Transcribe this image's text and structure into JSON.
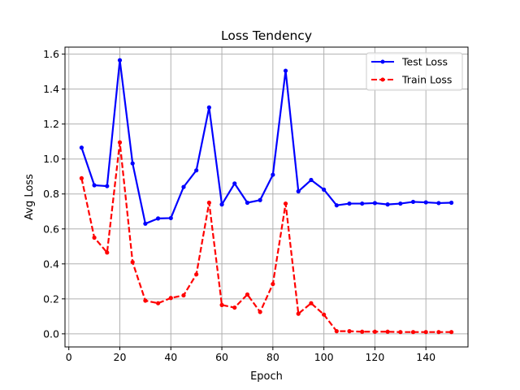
{
  "chart_data": {
    "type": "line",
    "title": "Loss Tendency",
    "xlabel": "Epoch",
    "ylabel": "Avg Loss",
    "xlim": [
      -1.5,
      156.5
    ],
    "ylim": [
      -0.075,
      1.64
    ],
    "xticks": [
      0,
      20,
      40,
      60,
      80,
      100,
      120,
      140
    ],
    "yticks": [
      0.0,
      0.2,
      0.4,
      0.6,
      0.8,
      1.0,
      1.2,
      1.4,
      1.6
    ],
    "ytick_labels": [
      "0.0",
      "0.2",
      "0.4",
      "0.6",
      "0.8",
      "1.0",
      "1.2",
      "1.4",
      "1.6"
    ],
    "grid": true,
    "legend_position": "upper-right",
    "x": [
      5,
      10,
      15,
      20,
      25,
      30,
      35,
      40,
      45,
      50,
      55,
      60,
      65,
      70,
      75,
      80,
      85,
      90,
      95,
      100,
      105,
      110,
      115,
      120,
      125,
      130,
      135,
      140,
      145,
      150
    ],
    "series": [
      {
        "name": "Test Loss",
        "color": "#0000ff",
        "linestyle": "solid",
        "values": [
          1.065,
          0.85,
          0.845,
          1.565,
          0.975,
          0.63,
          0.66,
          0.662,
          0.84,
          0.935,
          1.295,
          0.74,
          0.86,
          0.75,
          0.765,
          0.91,
          1.505,
          0.815,
          0.88,
          0.825,
          0.735,
          0.745,
          0.745,
          0.748,
          0.74,
          0.745,
          0.755,
          0.752,
          0.748,
          0.75
        ]
      },
      {
        "name": "Train Loss",
        "color": "#ff0000",
        "linestyle": "dashed",
        "values": [
          0.89,
          0.55,
          0.465,
          1.095,
          0.41,
          0.19,
          0.175,
          0.205,
          0.22,
          0.34,
          0.75,
          0.165,
          0.15,
          0.225,
          0.125,
          0.285,
          0.745,
          0.115,
          0.175,
          0.11,
          0.015,
          0.015,
          0.012,
          0.012,
          0.012,
          0.01,
          0.01,
          0.01,
          0.01,
          0.01
        ]
      }
    ]
  }
}
